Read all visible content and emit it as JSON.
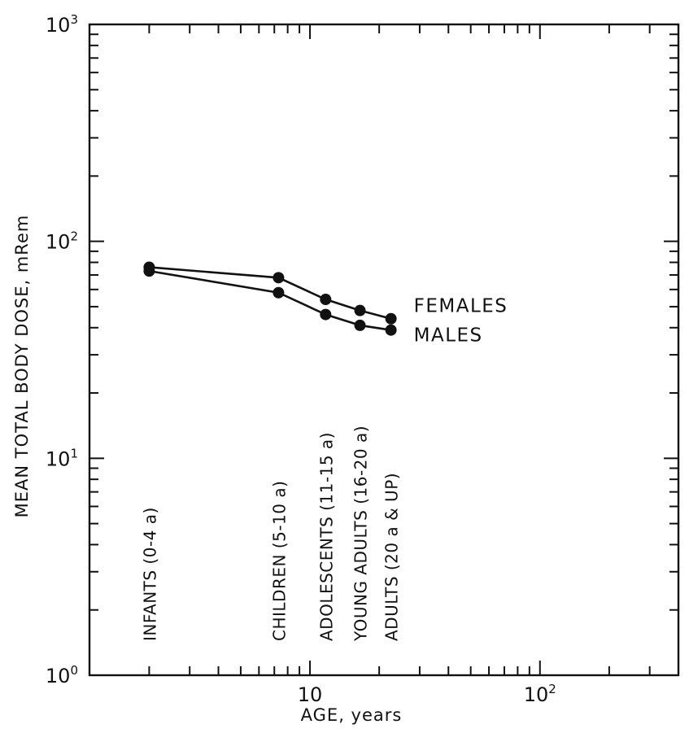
{
  "chart_data": {
    "type": "line",
    "xlabel": "AGE, years",
    "ylabel": "MEAN TOTAL BODY DOSE, mRem",
    "x_scale": "log",
    "y_scale": "log",
    "xlim": [
      1.1,
      400
    ],
    "ylim": [
      1,
      1000
    ],
    "x_ticks": [
      {
        "value": 10,
        "label": "10"
      },
      {
        "value": 100,
        "label": "10",
        "sup": "2"
      }
    ],
    "y_ticks": [
      {
        "value": 1,
        "label": "10",
        "sup": "0"
      },
      {
        "value": 10,
        "label": "10",
        "sup": "1"
      },
      {
        "value": 100,
        "label": "10",
        "sup": "2"
      },
      {
        "value": 1000,
        "label": "10",
        "sup": "3"
      }
    ],
    "series": [
      {
        "name": "FEMALES",
        "x": [
          2,
          7.3,
          11.7,
          16.5,
          22.5
        ],
        "y": [
          76,
          68,
          54,
          48,
          44
        ]
      },
      {
        "name": "MALES",
        "x": [
          2,
          7.3,
          11.7,
          16.5,
          22.5
        ],
        "y": [
          73,
          58,
          46,
          41,
          39
        ]
      }
    ],
    "annotations": [
      {
        "text": "INFANTS (0-4 a)",
        "x": 2
      },
      {
        "text": "CHILDREN (5-10 a)",
        "x": 7.3
      },
      {
        "text": "ADOLESCENTS   (11-15 a)",
        "x": 11.7
      },
      {
        "text": "YOUNG ADULTS (16-20 a)",
        "x": 16.5
      },
      {
        "text": "ADULTS (20 a & UP)",
        "x": 22.5
      }
    ],
    "grid": false,
    "legend": "direct labels at right end of lines"
  }
}
